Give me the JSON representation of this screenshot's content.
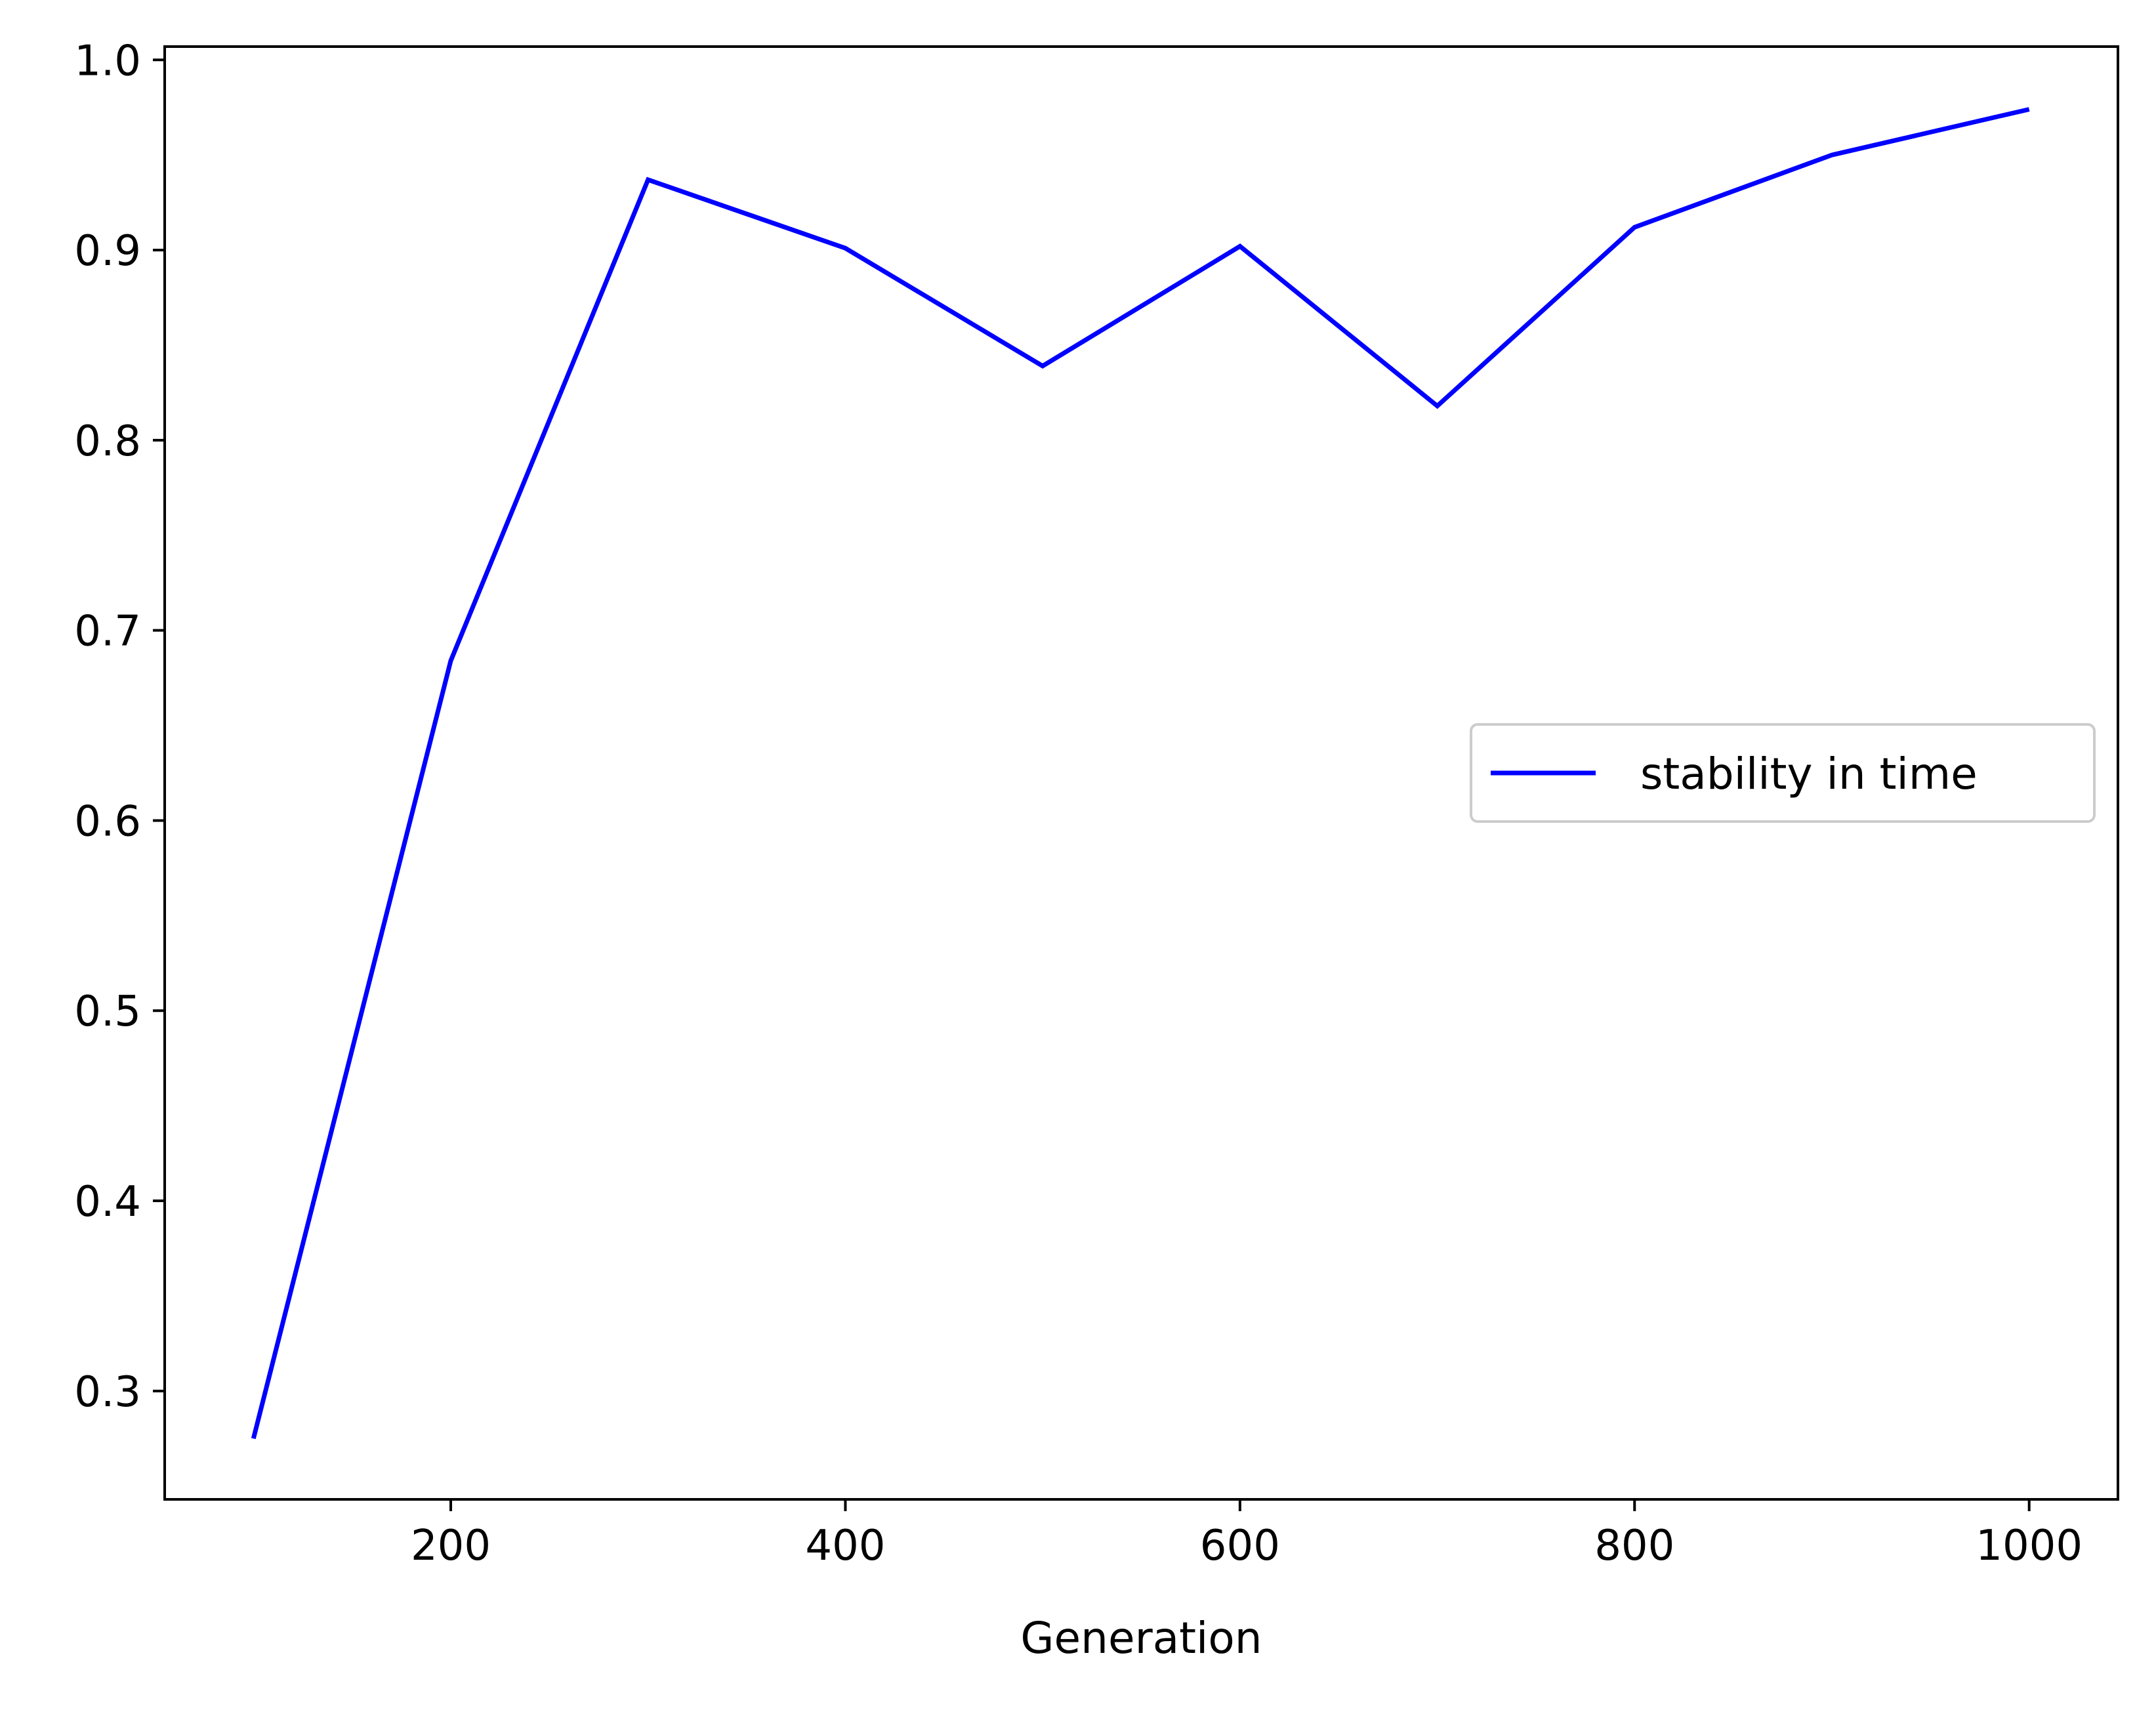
{
  "chart_data": {
    "type": "line",
    "title": "",
    "xlabel": "Generation",
    "ylabel": "",
    "xlim": [
      55,
      1045
    ],
    "ylim": [
      0.243,
      1.007
    ],
    "x_ticks": [
      200,
      400,
      600,
      800,
      1000
    ],
    "y_ticks": [
      0.3,
      0.4,
      0.5,
      0.6,
      0.7,
      0.8,
      0.9,
      1.0
    ],
    "x_tick_labels": [
      "200",
      "400",
      "600",
      "800",
      "1000"
    ],
    "y_tick_labels": [
      "0.3",
      "0.4",
      "0.5",
      "0.6",
      "0.7",
      "0.8",
      "0.9",
      "1.0"
    ],
    "grid": false,
    "legend_position": "center-right",
    "series": [
      {
        "name": "stability in time",
        "color": "#0000ff",
        "x": [
          100,
          200,
          300,
          400,
          500,
          600,
          700,
          800,
          900,
          1000
        ],
        "y": [
          0.275,
          0.684,
          0.937,
          0.901,
          0.839,
          0.902,
          0.818,
          0.912,
          0.95,
          0.974
        ]
      }
    ]
  }
}
